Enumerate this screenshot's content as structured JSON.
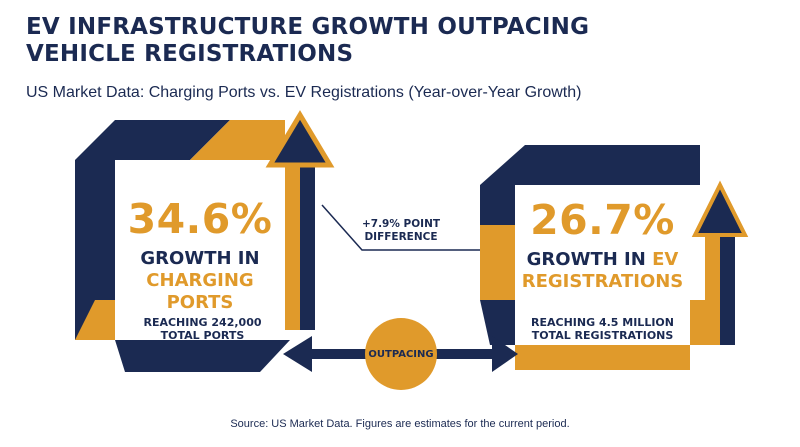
{
  "header": {
    "title_line1": "EV INFRASTRUCTURE GROWTH OUTPACING",
    "title_line2": "VEHICLE REGISTRATIONS",
    "subtitle": "US Market Data: Charging Ports vs. EV Registrations (Year-over-Year Growth)"
  },
  "left_card": {
    "value": "34.6%",
    "label_line1": "GROWTH IN",
    "label_line2": "CHARGING PORTS",
    "note_line1": "REACHING 242,000",
    "note_line2": "TOTAL PORTS"
  },
  "right_card": {
    "value": "26.7%",
    "label_line1_a": "GROWTH IN ",
    "label_line1_b": "EV",
    "label_line2": "REGISTRATIONS",
    "note_line1": "REACHING 4.5 MILLION",
    "note_line2": "TOTAL REGISTRATIONS"
  },
  "difference": {
    "line1": "+7.9% POINT",
    "line2": "DIFFERENCE"
  },
  "connector_label": "OUTPACING",
  "source": "Source: US Market Data. Figures are estimates for the current period.",
  "colors": {
    "navy": "#1b2a52",
    "gold": "#e09a2b"
  }
}
